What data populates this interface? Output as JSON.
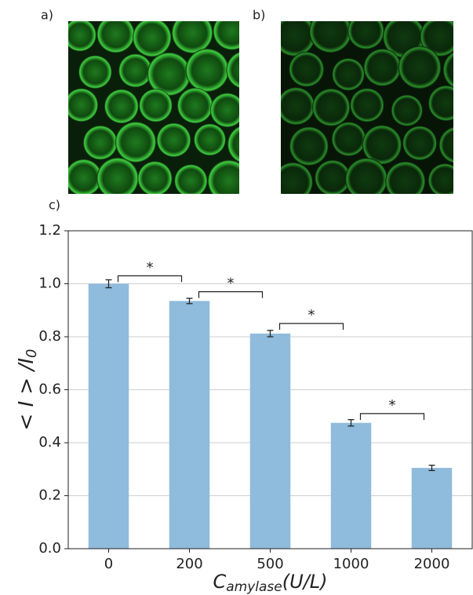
{
  "panels": {
    "a": "a)",
    "b": "b)",
    "c": "c)"
  },
  "chart_data": {
    "type": "bar",
    "categories": [
      "0",
      "200",
      "500",
      "1000",
      "2000"
    ],
    "values": [
      1.0,
      0.935,
      0.812,
      0.475,
      0.305
    ],
    "errors": [
      0.015,
      0.01,
      0.012,
      0.012,
      0.01
    ],
    "color": "#8fbbdc",
    "ylim": [
      0,
      1.2
    ],
    "yticks": [
      {
        "value": 0,
        "label": "0.0"
      },
      0.2,
      0.4,
      0.6,
      0.8,
      {
        "value": 1,
        "label": "1.0"
      },
      1.2
    ],
    "grid": true,
    "ylabel": {
      "main": "< I > /I",
      "sub": "0"
    },
    "xlabel": {
      "main": "C",
      "sub": "amylase",
      "tail": "(U/L)"
    },
    "annotations": [
      {
        "text": "*",
        "from": 0,
        "to": 1,
        "y": 1.03
      },
      {
        "text": "*",
        "from": 1,
        "to": 2,
        "y": 0.97
      },
      {
        "text": "*",
        "from": 2,
        "to": 3,
        "y": 0.85
      },
      {
        "text": "*",
        "from": 3,
        "to": 4,
        "y": 0.51
      }
    ]
  }
}
